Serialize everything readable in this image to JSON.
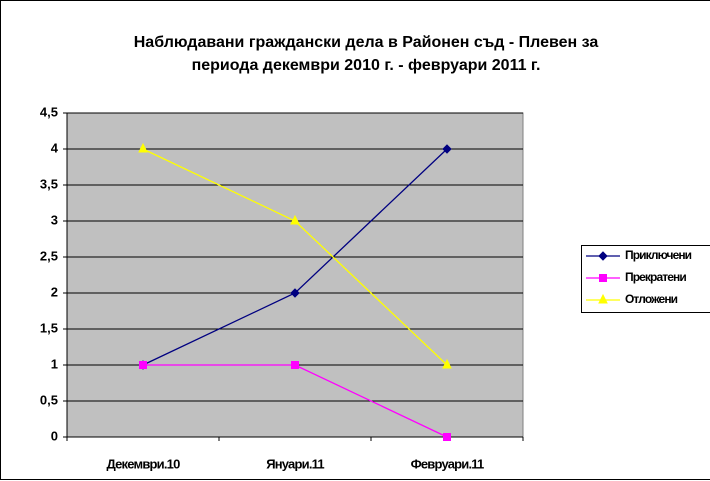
{
  "chart_data": {
    "type": "line",
    "title": [
      "Наблюдавани граждански дела в Районен съд - Плевен за",
      "периода декември 2010 г. - февруари 2011 г."
    ],
    "categories": [
      "Декември.10",
      "Януари.11",
      "Февруари.11"
    ],
    "series": [
      {
        "name": "Приключени",
        "color": "#000080",
        "marker": "diamond",
        "values": [
          1,
          2,
          4
        ]
      },
      {
        "name": "Прекратени",
        "color": "#ff00ff",
        "marker": "square",
        "values": [
          1,
          1,
          0
        ]
      },
      {
        "name": "Отложени",
        "color": "#ffff00",
        "marker": "triangle",
        "values": [
          4,
          3,
          1
        ]
      }
    ],
    "ylim": [
      0,
      4.5
    ],
    "yticks": [
      0,
      {
        "value": 0.5,
        "label": "0,5"
      },
      1,
      {
        "value": 1.5,
        "label": "1,5"
      },
      2,
      {
        "value": 2.5,
        "label": "2,5"
      },
      3,
      {
        "value": 3.5,
        "label": "3,5"
      },
      4,
      {
        "value": 4.5,
        "label": "4,5"
      }
    ],
    "grid": true,
    "legend": "right"
  }
}
